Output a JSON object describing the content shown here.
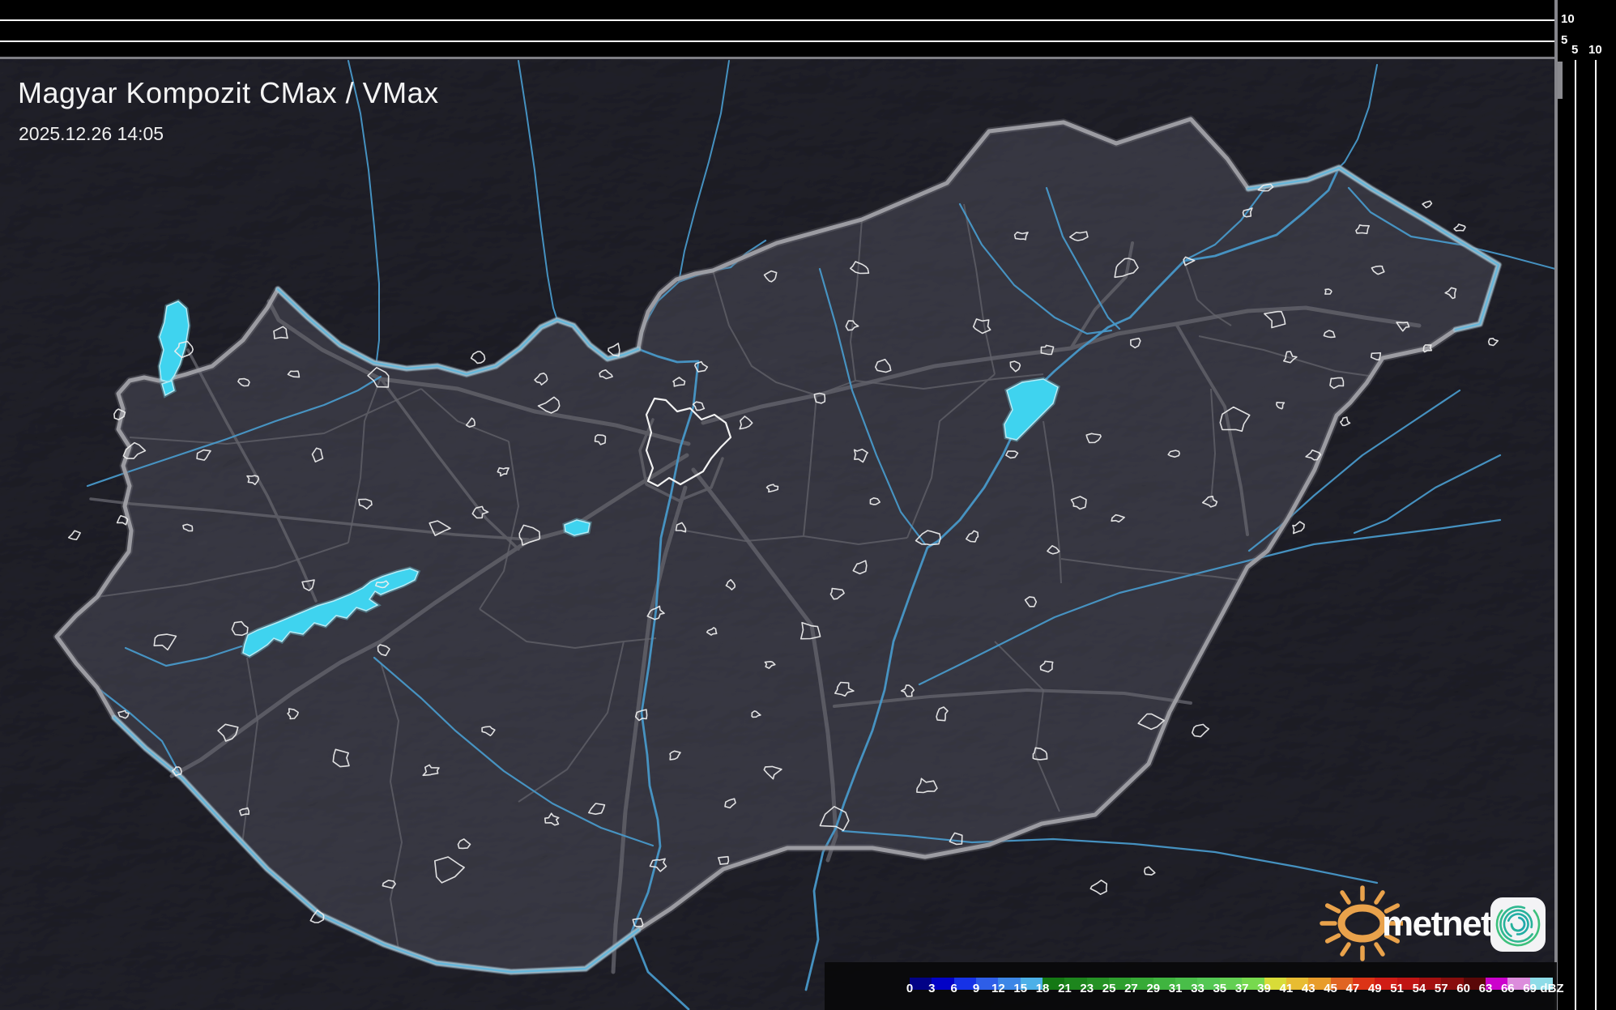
{
  "header": {
    "title": "Magyar Kompozit CMax / VMax",
    "timestamp": "2025.12.26 14:05"
  },
  "scales": {
    "top_axis": {
      "tick_labels": [
        "10",
        "5"
      ]
    },
    "right_axis": {
      "tick_labels": [
        "5",
        "10"
      ]
    }
  },
  "legend": {
    "unit": "dBZ",
    "tick_labels": [
      "0",
      "3",
      "6",
      "9",
      "12",
      "15",
      "18",
      "21",
      "23",
      "25",
      "27",
      "29",
      "31",
      "33",
      "35",
      "37",
      "39",
      "41",
      "43",
      "45",
      "47",
      "49",
      "51",
      "54",
      "57",
      "60",
      "63",
      "66",
      "69"
    ],
    "cell_colors": [
      "#020286",
      "#0202c6",
      "#1632e6",
      "#2e5ee8",
      "#3c86e6",
      "#4cb0e8",
      "#147814",
      "#1d861d",
      "#259225",
      "#2d9e2d",
      "#36aa36",
      "#3fb43f",
      "#49be49",
      "#53c753",
      "#63cf53",
      "#77d94e",
      "#d8dc38",
      "#e8bc32",
      "#e89c2a",
      "#e06422",
      "#dc3416",
      "#d01c16",
      "#c01414",
      "#a41010",
      "#880d0d",
      "#5a0808",
      "#cc02cc",
      "#dc8cdc",
      "#8edce8"
    ]
  },
  "branding": {
    "logo_text": "metnet"
  },
  "colors": {
    "lake": "#3fd3ef",
    "river": "#4898c8",
    "country_border": "#a0a0a6",
    "road": "#62626a",
    "settlement_outline": "#f0f0f0",
    "map_base": "#3e3e47",
    "sun_orange": "#e9a24b",
    "swirl_teal": "#2cb489"
  }
}
